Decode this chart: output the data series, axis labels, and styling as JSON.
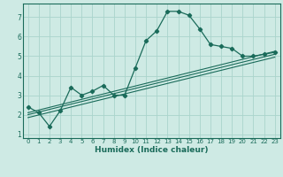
{
  "xlabel": "Humidex (Indice chaleur)",
  "xlim": [
    -0.5,
    23.5
  ],
  "ylim": [
    0.8,
    7.7
  ],
  "yticks": [
    1,
    2,
    3,
    4,
    5,
    6,
    7
  ],
  "xticks": [
    0,
    1,
    2,
    3,
    4,
    5,
    6,
    7,
    8,
    9,
    10,
    11,
    12,
    13,
    14,
    15,
    16,
    17,
    18,
    19,
    20,
    21,
    22,
    23
  ],
  "bg_color": "#ceeae4",
  "grid_color": "#aad4cc",
  "line_color": "#1a6b5a",
  "line1_x": [
    0,
    1,
    2,
    3,
    4,
    5,
    6,
    7,
    8,
    9,
    10,
    11,
    12,
    13,
    14,
    15,
    16,
    17,
    18,
    19,
    20,
    21,
    22,
    23
  ],
  "line1_y": [
    2.4,
    2.1,
    1.4,
    2.2,
    3.4,
    3.0,
    3.2,
    3.5,
    3.0,
    3.0,
    4.4,
    5.8,
    6.3,
    7.3,
    7.3,
    7.1,
    6.4,
    5.6,
    5.5,
    5.4,
    5.0,
    5.0,
    5.1,
    5.2
  ],
  "line2_x": [
    0,
    23
  ],
  "line2_y": [
    2.1,
    5.25
  ],
  "line3_x": [
    0,
    23
  ],
  "line3_y": [
    1.85,
    4.95
  ],
  "line4_x": [
    0,
    23
  ],
  "line4_y": [
    2.0,
    5.1
  ]
}
